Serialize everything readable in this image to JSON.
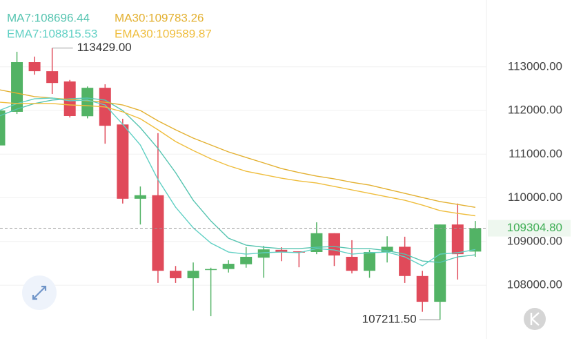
{
  "chart_data": {
    "type": "candlestick",
    "open": [
      111200,
      111970,
      113107,
      112900,
      112665,
      111870,
      112520,
      111680,
      109980,
      110060,
      108330,
      108160,
      108360,
      108370,
      108480,
      108630,
      108810,
      108775,
      108760,
      109190,
      108650,
      108330,
      108760,
      108880,
      108210,
      107620,
      109390,
      108770
    ],
    "high": [
      112150,
      113345,
      113234,
      113429,
      112700,
      112550,
      112600,
      111810,
      110260,
      111480,
      108440,
      108520,
      108400,
      108570,
      108870,
      108900,
      108870,
      108775,
      109440,
      109190,
      109030,
      108810,
      109120,
      109110,
      108330,
      109390,
      109870,
      109470
    ],
    "low": [
      111200,
      111920,
      112820,
      112380,
      111840,
      111820,
      111240,
      109870,
      109390,
      108050,
      108050,
      107420,
      107290,
      108290,
      108400,
      108170,
      108550,
      108410,
      108710,
      108440,
      108270,
      108170,
      108520,
      108050,
      107390,
      107211.5,
      108130,
      108650
    ],
    "close": [
      112000,
      113107,
      112900,
      112630,
      111874,
      112520,
      111650,
      109980,
      110060,
      108330,
      108160,
      108330,
      108370,
      108490,
      108650,
      108820,
      108760,
      108745,
      109190,
      108680,
      108330,
      108760,
      108880,
      108210,
      107620,
      109390,
      108710,
      109304.8
    ],
    "up_color": "#52b365",
    "down_color": "#e04a5a",
    "series": [
      {
        "name": "MA7:108696.44",
        "color": "#55c4b0",
        "values": [
          111874,
          112032,
          112159,
          112238,
          112269,
          112285,
          112238,
          112000,
          111605,
          111131,
          110578,
          109945,
          109471,
          109076,
          108917,
          108870,
          108838,
          108838,
          108870,
          108886,
          108838,
          108838,
          108791,
          108712,
          108554,
          108522,
          108649,
          108696.44
        ]
      },
      {
        "name": "MA30:109783.26",
        "color": "#e3b030",
        "values": [
          112475,
          112396,
          112317,
          112285,
          112253,
          112222,
          112190,
          112127,
          112000,
          111763,
          111558,
          111368,
          111210,
          111052,
          110925,
          110799,
          110672,
          110578,
          110498,
          110435,
          110356,
          110293,
          110198,
          110103,
          110008,
          109914,
          109850,
          109783.26
        ]
      },
      {
        "name": "EMA7:108815.53",
        "color": "#60d0c4",
        "values": [
          112000,
          112159,
          112269,
          112285,
          112222,
          112238,
          112127,
          111684,
          111210,
          110419,
          109787,
          109313,
          108965,
          108759,
          108712,
          108744,
          108759,
          108744,
          108838,
          108807,
          108712,
          108744,
          108759,
          108649,
          108443,
          108712,
          108744,
          108815.53
        ]
      },
      {
        "name": "EMA30:109589.87",
        "color": "#efbd3c",
        "values": [
          112190,
          112159,
          112159,
          112159,
          112127,
          112111,
          112080,
          111969,
          111811,
          111558,
          111289,
          111083,
          110894,
          110736,
          110609,
          110530,
          110451,
          110388,
          110340,
          110261,
          110182,
          110103,
          110024,
          109945,
          109834,
          109708,
          109645,
          109589.87
        ]
      }
    ],
    "ylim": [
      107100,
      114530
    ],
    "yticks": [
      {
        "value": 108000,
        "label": "108000.00"
      },
      {
        "value": 109000,
        "label": "109000.00"
      },
      {
        "value": 110000,
        "label": "110000.00"
      },
      {
        "value": 111000,
        "label": "111000.00"
      },
      {
        "value": 112000,
        "label": "112000.00"
      },
      {
        "value": 113000,
        "label": "113000.00"
      }
    ],
    "grid": true,
    "high_label": {
      "value": 113429,
      "label": "113429.00"
    },
    "low_label": {
      "value": 107211.5,
      "label": "107211.50"
    },
    "last_price": {
      "value": 109304.8,
      "label": "109304.80",
      "color": "#3fae55"
    }
  }
}
